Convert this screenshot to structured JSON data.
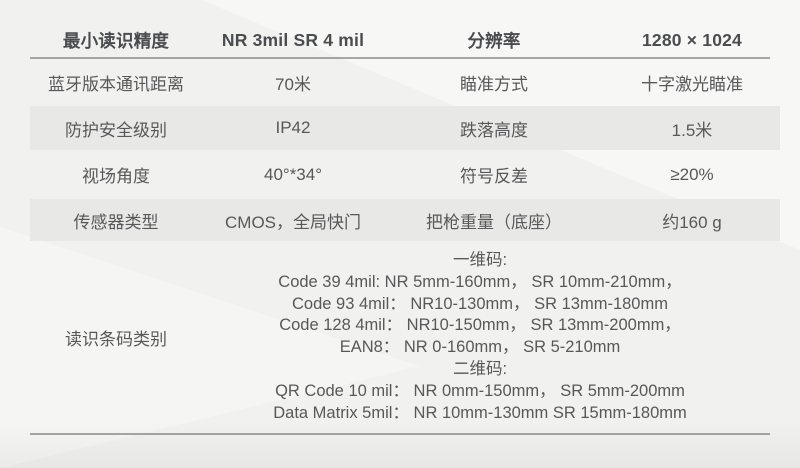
{
  "table": {
    "header": {
      "cells": [
        "最小读识精度",
        "NR 3mil SR 4 mil",
        "分辨率",
        "1280 × 1024"
      ]
    },
    "rows": [
      {
        "cells": [
          "蓝牙版本通讯距离",
          "70米",
          "瞄准方式",
          "十字激光瞄准"
        ]
      },
      {
        "cells": [
          "防护安全级别",
          "IP42",
          "跌落高度",
          "1.5米"
        ]
      },
      {
        "cells": [
          "视场角度",
          "40°*34°",
          "符号反差",
          "≥20%"
        ]
      },
      {
        "cells": [
          "传感器类型",
          "CMOS，全局快门",
          "把枪重量（底座）",
          "约160 g"
        ]
      }
    ],
    "barcode": {
      "label": "读识条码类别",
      "lines": [
        "一维码:",
        "Code 39 4mil: NR 5mm-160mm， SR 10mm-210mm，",
        "Code 93 4mil： NR10-130mm， SR 13mm-180mm",
        "Code 128 4mil： NR10-150mm， SR 13mm-200mm，",
        "EAN8： NR 0-160mm， SR 5-210mm",
        "二维码:",
        "QR Code 10 mil： NR 0mm-150mm， SR 5mm-200mm",
        "Data Matrix 5mil： NR 10mm-130mm SR 15mm-180mm"
      ]
    }
  },
  "colors": {
    "background": "#f1f1ef",
    "shaded_band": "#e8e8e6",
    "text": "#57585a",
    "header_text": "#4b4c4f",
    "divider_line": "#878787"
  }
}
